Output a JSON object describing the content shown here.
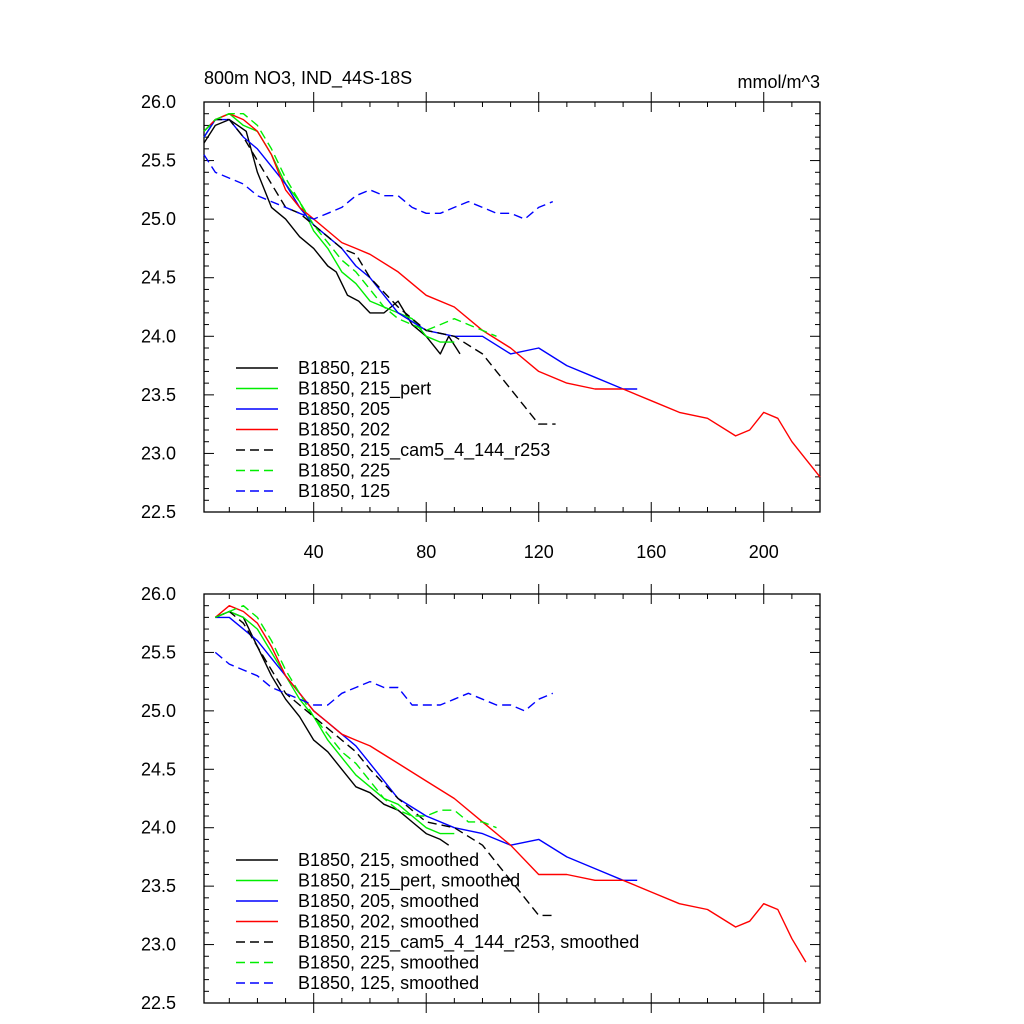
{
  "chart_data": [
    {
      "type": "line",
      "title": "800m NO3, IND_44S-18S",
      "units": "mmol/m^3",
      "xlim": [
        1,
        220
      ],
      "ylim": [
        22.5,
        26.0
      ],
      "xticks": [
        40,
        80,
        120,
        160,
        200
      ],
      "yticks": [
        22.5,
        23.0,
        23.5,
        24.0,
        24.5,
        25.0,
        25.5,
        26.0
      ],
      "ytick_labels": [
        "22.5",
        "23.0",
        "23.5",
        "24.0",
        "24.5",
        "25.0",
        "25.5",
        "26.0"
      ],
      "legend_position": "lower-left",
      "series": [
        {
          "name": "B1850, 215",
          "color": "#000000",
          "dash": "solid",
          "x": [
            1,
            5,
            10,
            13,
            16,
            20,
            25,
            30,
            35,
            40,
            45,
            48,
            52,
            56,
            60,
            65,
            70,
            75,
            80,
            85,
            88,
            92
          ],
          "y": [
            25.65,
            25.8,
            25.85,
            25.8,
            25.75,
            25.4,
            25.1,
            25.0,
            24.85,
            24.75,
            24.6,
            24.55,
            24.35,
            24.3,
            24.2,
            24.2,
            24.3,
            24.1,
            24.0,
            23.85,
            24.0,
            23.85
          ]
        },
        {
          "name": "B1850, 215_pert",
          "color": "#00ee00",
          "dash": "solid",
          "x": [
            1,
            5,
            10,
            15,
            20,
            25,
            30,
            35,
            40,
            45,
            50,
            55,
            60,
            65,
            70,
            75,
            80,
            85,
            90
          ],
          "y": [
            25.7,
            25.85,
            25.9,
            25.8,
            25.75,
            25.55,
            25.3,
            25.15,
            24.9,
            24.75,
            24.55,
            24.45,
            24.3,
            24.25,
            24.2,
            24.15,
            24.0,
            23.95,
            23.95
          ]
        },
        {
          "name": "B1850, 205",
          "color": "#0000ff",
          "dash": "solid",
          "x": [
            1,
            5,
            10,
            15,
            20,
            25,
            30,
            35,
            40,
            45,
            50,
            55,
            60,
            70,
            80,
            90,
            100,
            110,
            120,
            130,
            140,
            150,
            155
          ],
          "y": [
            25.7,
            25.85,
            25.85,
            25.7,
            25.6,
            25.45,
            25.3,
            25.1,
            24.95,
            24.85,
            24.75,
            24.6,
            24.5,
            24.2,
            24.05,
            24.0,
            24.0,
            23.85,
            23.9,
            23.75,
            23.65,
            23.55,
            23.55
          ]
        },
        {
          "name": "B1850, 202",
          "color": "#ff0000",
          "dash": "solid",
          "x": [
            1,
            5,
            10,
            15,
            20,
            25,
            30,
            35,
            40,
            45,
            50,
            55,
            60,
            70,
            80,
            90,
            100,
            110,
            120,
            130,
            140,
            150,
            160,
            170,
            180,
            190,
            195,
            200,
            205,
            210,
            215,
            220
          ],
          "y": [
            25.75,
            25.85,
            25.9,
            25.85,
            25.75,
            25.55,
            25.25,
            25.1,
            25.0,
            24.9,
            24.8,
            24.75,
            24.7,
            24.55,
            24.35,
            24.25,
            24.05,
            23.9,
            23.7,
            23.6,
            23.55,
            23.55,
            23.45,
            23.35,
            23.3,
            23.15,
            23.2,
            23.35,
            23.3,
            23.1,
            22.95,
            22.8
          ]
        },
        {
          "name": "B1850, 215_cam5_4_144_r253",
          "color": "#000000",
          "dash": "dash",
          "x": [
            1,
            5,
            10,
            15,
            20,
            25,
            30,
            35,
            40,
            45,
            50,
            55,
            60,
            70,
            80,
            90,
            100,
            105,
            110,
            115,
            120,
            126
          ],
          "y": [
            25.75,
            25.85,
            25.85,
            25.7,
            25.5,
            25.3,
            25.1,
            25.05,
            24.95,
            24.85,
            24.75,
            24.7,
            24.5,
            24.25,
            24.05,
            24.0,
            23.85,
            23.7,
            23.55,
            23.4,
            23.25,
            23.25
          ]
        },
        {
          "name": "B1850, 225",
          "color": "#00ee00",
          "dash": "dash",
          "x": [
            1,
            5,
            10,
            15,
            20,
            25,
            30,
            35,
            40,
            45,
            50,
            55,
            60,
            65,
            70,
            75,
            80,
            85,
            90,
            95,
            100,
            105
          ],
          "y": [
            25.75,
            25.85,
            25.9,
            25.9,
            25.8,
            25.6,
            25.35,
            25.15,
            24.95,
            24.8,
            24.65,
            24.55,
            24.4,
            24.25,
            24.15,
            24.1,
            24.05,
            24.1,
            24.15,
            24.1,
            24.05,
            24.0
          ]
        },
        {
          "name": "B1850, 125",
          "color": "#0000ff",
          "dash": "dash",
          "x": [
            1,
            5,
            10,
            15,
            20,
            25,
            30,
            35,
            40,
            45,
            50,
            55,
            60,
            65,
            70,
            75,
            80,
            85,
            90,
            95,
            100,
            105,
            110,
            115,
            120,
            125
          ],
          "y": [
            25.55,
            25.4,
            25.35,
            25.3,
            25.2,
            25.15,
            25.1,
            25.05,
            25.0,
            25.05,
            25.1,
            25.2,
            25.25,
            25.2,
            25.2,
            25.1,
            25.05,
            25.05,
            25.1,
            25.15,
            25.1,
            25.05,
            25.05,
            25.0,
            25.1,
            25.15
          ]
        }
      ]
    },
    {
      "type": "line",
      "title": "",
      "units": "",
      "xlim": [
        1,
        220
      ],
      "ylim": [
        22.5,
        26.0
      ],
      "xticks": [
        40,
        80,
        120,
        160,
        200
      ],
      "yticks": [
        22.5,
        23.0,
        23.5,
        24.0,
        24.5,
        25.0,
        25.5,
        26.0
      ],
      "ytick_labels": [
        "22.5",
        "23.0",
        "23.5",
        "24.0",
        "24.5",
        "25.0",
        "25.5",
        "26.0"
      ],
      "legend_position": "lower-left",
      "series": [
        {
          "name": "B1850, 215, smoothed",
          "color": "#000000",
          "dash": "solid",
          "x": [
            5,
            10,
            15,
            20,
            25,
            30,
            35,
            40,
            45,
            50,
            55,
            60,
            65,
            70,
            75,
            80,
            85,
            88
          ],
          "y": [
            25.8,
            25.85,
            25.8,
            25.55,
            25.3,
            25.1,
            24.95,
            24.75,
            24.65,
            24.5,
            24.35,
            24.3,
            24.2,
            24.15,
            24.05,
            23.95,
            23.9,
            23.85
          ]
        },
        {
          "name": "B1850, 215_pert, smoothed",
          "color": "#00ee00",
          "dash": "solid",
          "x": [
            5,
            10,
            15,
            20,
            25,
            30,
            35,
            40,
            45,
            50,
            55,
            60,
            65,
            70,
            75,
            80,
            85,
            90
          ],
          "y": [
            25.8,
            25.85,
            25.8,
            25.7,
            25.5,
            25.3,
            25.1,
            24.95,
            24.75,
            24.6,
            24.45,
            24.35,
            24.25,
            24.2,
            24.1,
            24.0,
            23.95,
            23.95
          ]
        },
        {
          "name": "B1850, 205, smoothed",
          "color": "#0000ff",
          "dash": "solid",
          "x": [
            5,
            10,
            15,
            20,
            25,
            30,
            35,
            40,
            45,
            50,
            55,
            60,
            70,
            80,
            90,
            100,
            110,
            120,
            130,
            140,
            150,
            155
          ],
          "y": [
            25.8,
            25.8,
            25.7,
            25.6,
            25.45,
            25.3,
            25.15,
            25.0,
            24.9,
            24.8,
            24.7,
            24.55,
            24.25,
            24.1,
            24.0,
            23.95,
            23.85,
            23.9,
            23.75,
            23.65,
            23.55,
            23.55
          ]
        },
        {
          "name": "B1850, 202, smoothed",
          "color": "#ff0000",
          "dash": "solid",
          "x": [
            5,
            10,
            15,
            20,
            25,
            30,
            35,
            40,
            45,
            50,
            55,
            60,
            70,
            80,
            90,
            100,
            110,
            120,
            130,
            140,
            150,
            160,
            170,
            180,
            190,
            195,
            200,
            205,
            210,
            215
          ],
          "y": [
            25.8,
            25.9,
            25.85,
            25.75,
            25.55,
            25.3,
            25.15,
            25.0,
            24.9,
            24.8,
            24.75,
            24.7,
            24.55,
            24.4,
            24.25,
            24.05,
            23.85,
            23.6,
            23.6,
            23.55,
            23.55,
            23.45,
            23.35,
            23.3,
            23.15,
            23.2,
            23.35,
            23.3,
            23.05,
            22.85
          ]
        },
        {
          "name": "B1850, 215_cam5_4_144_r253, smoothed",
          "color": "#000000",
          "dash": "dash",
          "x": [
            5,
            10,
            15,
            20,
            25,
            30,
            35,
            40,
            45,
            50,
            55,
            60,
            70,
            80,
            90,
            100,
            105,
            110,
            115,
            120,
            125
          ],
          "y": [
            25.8,
            25.85,
            25.75,
            25.55,
            25.35,
            25.15,
            25.05,
            24.95,
            24.85,
            24.75,
            24.65,
            24.5,
            24.25,
            24.05,
            24.0,
            23.85,
            23.7,
            23.55,
            23.4,
            23.25,
            23.25
          ]
        },
        {
          "name": "B1850, 225, smoothed",
          "color": "#00ee00",
          "dash": "dash",
          "x": [
            5,
            10,
            15,
            20,
            25,
            30,
            35,
            40,
            45,
            50,
            55,
            60,
            65,
            70,
            75,
            80,
            85,
            90,
            95,
            100,
            105
          ],
          "y": [
            25.8,
            25.85,
            25.9,
            25.8,
            25.6,
            25.35,
            25.15,
            24.95,
            24.8,
            24.65,
            24.55,
            24.4,
            24.25,
            24.15,
            24.1,
            24.1,
            24.15,
            24.15,
            24.05,
            24.05,
            24.0
          ]
        },
        {
          "name": "B1850, 125, smoothed",
          "color": "#0000ff",
          "dash": "dash",
          "x": [
            5,
            10,
            15,
            20,
            25,
            30,
            35,
            40,
            45,
            50,
            55,
            60,
            65,
            70,
            75,
            80,
            85,
            90,
            95,
            100,
            105,
            110,
            115,
            120,
            125
          ],
          "y": [
            25.5,
            25.4,
            25.35,
            25.3,
            25.2,
            25.15,
            25.1,
            25.05,
            25.05,
            25.15,
            25.2,
            25.25,
            25.2,
            25.2,
            25.05,
            25.05,
            25.05,
            25.1,
            25.15,
            25.1,
            25.05,
            25.05,
            25.0,
            25.1,
            25.15
          ]
        }
      ]
    }
  ]
}
